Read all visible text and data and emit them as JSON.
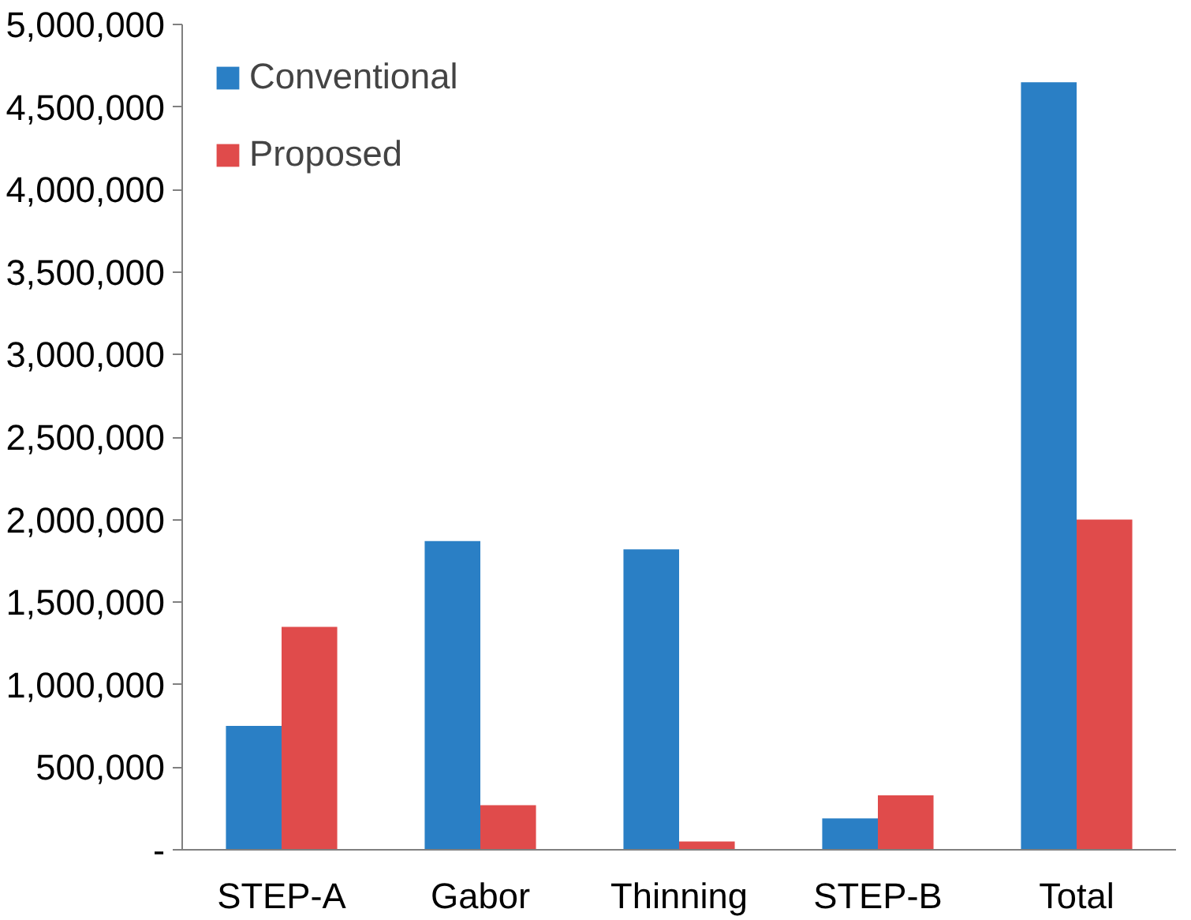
{
  "chart_data": {
    "type": "bar",
    "categories": [
      "STEP-A",
      "Gabor",
      "Thinning",
      "STEP-B",
      "Total"
    ],
    "series": [
      {
        "name": "Conventional",
        "color": "#2a7fc5",
        "values": [
          750000,
          1870000,
          1820000,
          190000,
          4650000
        ]
      },
      {
        "name": "Proposed",
        "color": "#e04b4b",
        "values": [
          1350000,
          270000,
          50000,
          330000,
          2000000
        ]
      }
    ],
    "ylim": [
      0,
      5000000
    ],
    "yticks": [
      {
        "value": 0,
        "label": "-"
      },
      {
        "value": 500000,
        "label": "500,000"
      },
      {
        "value": 1000000,
        "label": "1,000,000"
      },
      {
        "value": 1500000,
        "label": "1,500,000"
      },
      {
        "value": 2000000,
        "label": "2,000,000"
      },
      {
        "value": 2500000,
        "label": "2,500,000"
      },
      {
        "value": 3000000,
        "label": "3,000,000"
      },
      {
        "value": 3500000,
        "label": "3,500,000"
      },
      {
        "value": 4000000,
        "label": "4,000,000"
      },
      {
        "value": 4500000,
        "label": "4,500,000"
      },
      {
        "value": 5000000,
        "label": "5,000,000"
      }
    ],
    "grid": false,
    "legend": "top left"
  }
}
